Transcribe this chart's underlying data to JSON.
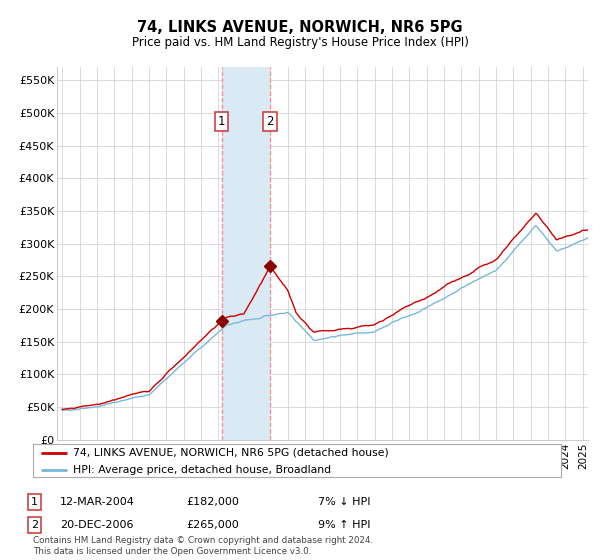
{
  "title": "74, LINKS AVENUE, NORWICH, NR6 5PG",
  "subtitle": "Price paid vs. HM Land Registry's House Price Index (HPI)",
  "legend_line1": "74, LINKS AVENUE, NORWICH, NR6 5PG (detached house)",
  "legend_line2": "HPI: Average price, detached house, Broadland",
  "transaction1_date": "12-MAR-2004",
  "transaction1_price": 182000,
  "transaction1_pct": "7% ↓ HPI",
  "transaction2_date": "20-DEC-2006",
  "transaction2_price": 265000,
  "transaction2_pct": "9% ↑ HPI",
  "footer": "Contains HM Land Registry data © Crown copyright and database right 2024.\nThis data is licensed under the Open Government Licence v3.0.",
  "hpi_color": "#7ab8d9",
  "price_color": "#cc0000",
  "marker_color": "#8b0000",
  "shading_color": "#daeaf5",
  "dashed_line_color": "#ff8888",
  "background_color": "#ffffff",
  "grid_color": "#cccccc",
  "ylim": [
    0,
    570000
  ],
  "ytick_values": [
    0,
    50000,
    100000,
    150000,
    200000,
    250000,
    300000,
    350000,
    400000,
    450000,
    500000,
    550000
  ],
  "ytick_labels": [
    "£0",
    "£50K",
    "£100K",
    "£150K",
    "£200K",
    "£250K",
    "£300K",
    "£350K",
    "£400K",
    "£450K",
    "£500K",
    "£550K"
  ],
  "transaction1_x": 2004.19,
  "transaction2_x": 2006.97,
  "shading_x_start": 2004.19,
  "shading_x_end": 2006.97,
  "xlim_start": 1994.7,
  "xlim_end": 2025.3
}
